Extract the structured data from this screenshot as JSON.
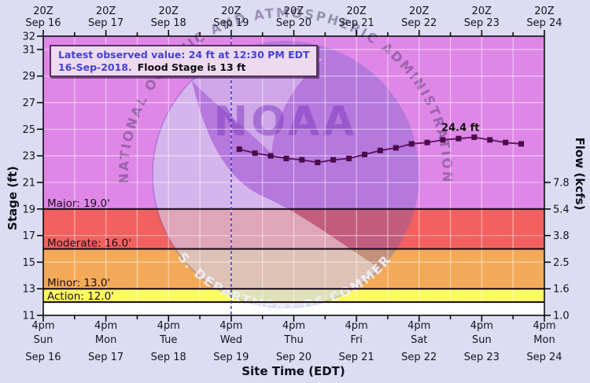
{
  "colors": {
    "page_bg": "#dcdcf2",
    "forecast_line": "#5a0f5a",
    "forecast_marker": "#4b0b4b",
    "forecast_start_line": "#3b3bcf",
    "gridline": "rgba(255,255,255,0.5)",
    "legend_text_blue": "#4343cf",
    "legend_bg": "#eddaef",
    "legend_border": "#533063",
    "watermark_circle": "rgba(85,85,200,0.30)",
    "watermark_bird": "rgba(255,255,255,0.45)",
    "watermark_org_text": "rgba(125,55,190,0.5)",
    "watermark_arc_top_text": "rgba(85,65,115,0.5)",
    "watermark_arc_bottom_text": "rgba(240,245,255,0.85)"
  },
  "legend": {
    "line1": "Latest observed value: 24 ft at 12:30 PM EDT",
    "line2_date": "16-Sep-2018.",
    "line2_rest": "Flood Stage is 13 ft"
  },
  "axes": {
    "left_label": "Stage (ft)",
    "right_label": "Flow (kcfs)",
    "bottom_label": "Site Time (EDT)",
    "stage_ticks": [
      32,
      31,
      29,
      27,
      25,
      23,
      21,
      19,
      17,
      15,
      13,
      11
    ],
    "flow_ticks": [
      {
        "label": "7.8",
        "at_stage": 21
      },
      {
        "label": "5.4",
        "at_stage": 19
      },
      {
        "label": "3.8",
        "at_stage": 17
      },
      {
        "label": "2.5",
        "at_stage": 15
      },
      {
        "label": "1.6",
        "at_stage": 13
      },
      {
        "label": "1.0",
        "at_stage": 11
      }
    ],
    "top_axis": [
      {
        "time": "20Z",
        "date": "Sep 16"
      },
      {
        "time": "20Z",
        "date": "Sep 17"
      },
      {
        "time": "20Z",
        "date": "Sep 18"
      },
      {
        "time": "20Z",
        "date": "Sep 19"
      },
      {
        "time": "20Z",
        "date": "Sep 20"
      },
      {
        "time": "20Z",
        "date": "Sep 21"
      },
      {
        "time": "20Z",
        "date": "Sep 22"
      },
      {
        "time": "20Z",
        "date": "Sep 23"
      },
      {
        "time": "20Z",
        "date": "Sep 24"
      }
    ],
    "bottom_axis": [
      {
        "time": "4pm",
        "day": "Sun",
        "date": "Sep 16"
      },
      {
        "time": "4pm",
        "day": "Mon",
        "date": "Sep 17"
      },
      {
        "time": "4pm",
        "day": "Tue",
        "date": "Sep 18"
      },
      {
        "time": "4pm",
        "day": "Wed",
        "date": "Sep 19"
      },
      {
        "time": "4pm",
        "day": "Thu",
        "date": "Sep 20"
      },
      {
        "time": "4pm",
        "day": "Fri",
        "date": "Sep 21"
      },
      {
        "time": "4pm",
        "day": "Sat",
        "date": "Sep 22"
      },
      {
        "time": "4pm",
        "day": "Sun",
        "date": "Sep 23"
      },
      {
        "time": "4pm",
        "day": "Mon",
        "date": "Sep 24"
      }
    ]
  },
  "bands": [
    {
      "name": "above-major",
      "from_stage": 19,
      "to_stage": 32,
      "color": "#df87e7"
    },
    {
      "name": "major-flood",
      "from_stage": 16,
      "to_stage": 19,
      "color": "#f2615f"
    },
    {
      "name": "moderate-flood",
      "from_stage": 13,
      "to_stage": 16,
      "color": "#f3aa58"
    },
    {
      "name": "minor-flood",
      "from_stage": 12,
      "to_stage": 13,
      "color": "#fbfb62"
    },
    {
      "name": "below-action",
      "from_stage": 11,
      "to_stage": 12,
      "color": "#ffffff"
    }
  ],
  "flood_lines": [
    {
      "name": "major",
      "label": "Major: 19.0'",
      "stage": 19
    },
    {
      "name": "moderate",
      "label": "Moderate: 16.0'",
      "stage": 16
    },
    {
      "name": "minor",
      "label": "Minor: 13.0'",
      "stage": 13
    },
    {
      "name": "action",
      "label": "Action: 12.0'",
      "stage": 12
    }
  ],
  "watermark": {
    "org": "NOAA",
    "arc_top": "NATIONAL OCEANIC AND ATMOSPHERIC ADMINISTRATION",
    "arc_bottom": "U.S. DEPARTMENT OF COMMERCE"
  },
  "chart_data": {
    "type": "line",
    "xlabel": "Site Time (EDT)",
    "ylabel_left": "Stage (ft)",
    "ylabel_right": "Flow (kcfs)",
    "stage_ylim": [
      11,
      32
    ],
    "x_domain_days": [
      0,
      8
    ],
    "x_epoch": "Sep 16 2018 4:00 PM EDT (20Z)",
    "grid": true,
    "flood_stage_ft": 13,
    "latest_observed": {
      "value_ft": 24,
      "time": "12:30 PM EDT 16-Sep-2018"
    },
    "flow_stage_pairs": [
      [
        21,
        7.8
      ],
      [
        19,
        5.4
      ],
      [
        17,
        3.8
      ],
      [
        15,
        2.5
      ],
      [
        13,
        1.6
      ],
      [
        11,
        1.0
      ]
    ],
    "series": [
      {
        "name": "river-stage-forecast",
        "x_days": [
          3.13,
          3.38,
          3.63,
          3.88,
          4.13,
          4.38,
          4.63,
          4.88,
          5.13,
          5.38,
          5.63,
          5.88,
          6.13,
          6.38,
          6.63,
          6.88,
          7.13,
          7.38,
          7.63
        ],
        "stage_ft": [
          23.5,
          23.2,
          23.0,
          22.8,
          22.7,
          22.5,
          22.7,
          22.8,
          23.1,
          23.4,
          23.6,
          23.9,
          24.0,
          24.2,
          24.3,
          24.4,
          24.2,
          24.0,
          23.9
        ]
      }
    ],
    "crest_annotation": {
      "label": "24.4 ft",
      "x_days": 6.66,
      "stage_ft": 24.4
    },
    "forecast_start_x_days": 3.0
  }
}
